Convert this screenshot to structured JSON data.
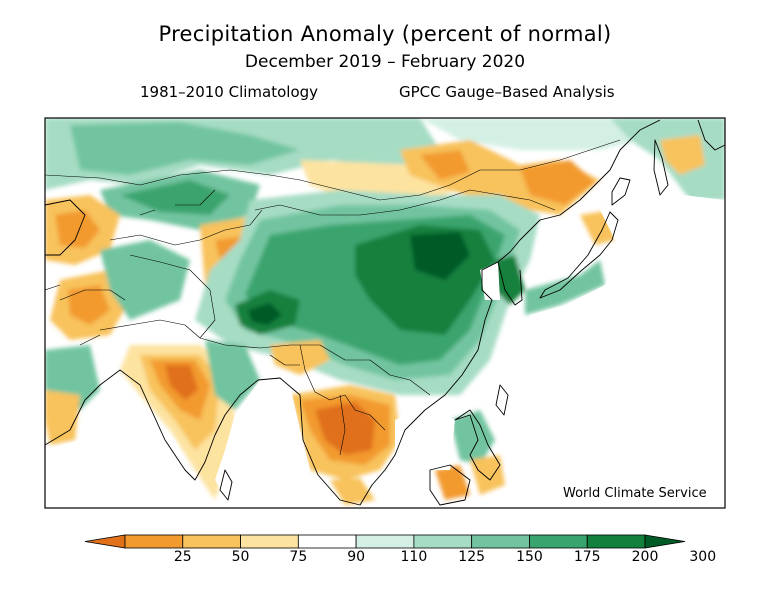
{
  "header": {
    "title": "Precipitation Anomaly (percent of normal)",
    "period": "December 2019 – February 2020",
    "climatology": "1981–2010 Climatology",
    "analysis": "GPCC Gauge–Based Analysis"
  },
  "credit": "World Climate Service",
  "colorbar": {
    "labels": [
      "25",
      "50",
      "75",
      "90",
      "110",
      "125",
      "150",
      "175",
      "200",
      "300"
    ],
    "colors": [
      "#e0701a",
      "#f29a2e",
      "#f8c25c",
      "#fde3a0",
      "#ffffff",
      "#d4f0e4",
      "#a6dcc4",
      "#72c4a0",
      "#3aa46e",
      "#13803e",
      "#005a26"
    ]
  },
  "palette": {
    "very_dry": "#e0701a",
    "dry": "#f29a2e",
    "moderately_dry": "#f8c25c",
    "slightly_dry": "#fde3a0",
    "normal": "#ffffff",
    "slightly_wet": "#d4f0e4",
    "wet": "#a6dcc4",
    "very_wet": "#72c4a0",
    "much_wetter": "#3aa46e",
    "extremely_wet": "#13803e",
    "record_wet": "#005a26"
  }
}
